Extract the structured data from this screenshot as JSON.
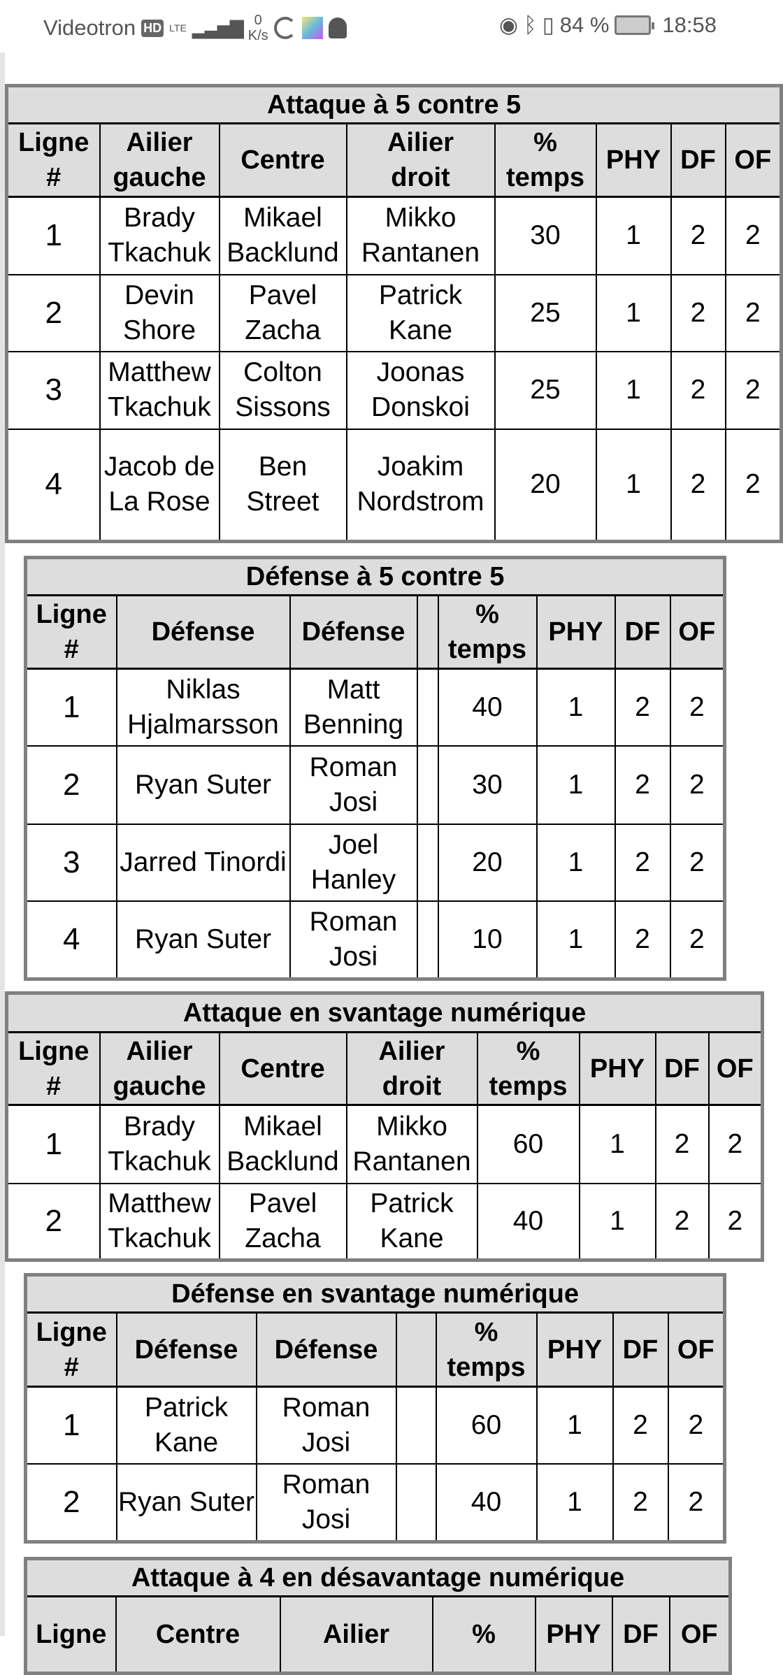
{
  "status_bar": {
    "carrier": "Videotron",
    "hd_badge": "HD",
    "network": "LTE",
    "speed_value": "0",
    "speed_unit": "K/s",
    "battery": "84 %",
    "time": "18:58",
    "icons": [
      "sync-icon",
      "app-icon",
      "snapchat-icon",
      "eye-icon",
      "bluetooth-icon",
      "vibrate-icon",
      "battery-icon"
    ]
  },
  "tables": [
    {
      "title": "Attaque à 5 contre 5",
      "headers": [
        "Ligne\n#",
        "Ailier\ngauche",
        "Centre",
        "Ailier\ndroit",
        "%\ntemps",
        "PHY",
        "DF",
        "OF"
      ],
      "rows": [
        [
          "1",
          "Brady Tkachuk",
          "Mikael Backlund",
          "Mikko Rantanen",
          "30",
          "1",
          "2",
          "2"
        ],
        [
          "2",
          "Devin Shore",
          "Pavel Zacha",
          "Patrick Kane",
          "25",
          "1",
          "2",
          "2"
        ],
        [
          "3",
          "Matthew Tkachuk",
          "Colton Sissons",
          "Joonas Donskoi",
          "25",
          "1",
          "2",
          "2"
        ],
        [
          "4",
          "Jacob de La Rose",
          "Ben Street",
          "Joakim Nordstrom",
          "20",
          "1",
          "2",
          "2"
        ]
      ]
    },
    {
      "title": "Défense à 5 contre 5",
      "headers": [
        "Ligne\n#",
        "Défense",
        "Défense",
        "",
        "%\ntemps",
        "PHY",
        "DF",
        "OF"
      ],
      "rows": [
        [
          "1",
          "Niklas Hjalmarsson",
          "Matt Benning",
          "",
          "40",
          "1",
          "2",
          "2"
        ],
        [
          "2",
          "Ryan Suter",
          "Roman Josi",
          "",
          "30",
          "1",
          "2",
          "2"
        ],
        [
          "3",
          "Jarred Tinordi",
          "Joel Hanley",
          "",
          "20",
          "1",
          "2",
          "2"
        ],
        [
          "4",
          "Ryan Suter",
          "Roman Josi",
          "",
          "10",
          "1",
          "2",
          "2"
        ]
      ]
    },
    {
      "title": "Attaque en svantage numérique",
      "headers": [
        "Ligne\n#",
        "Ailier\ngauche",
        "Centre",
        "Ailier\ndroit",
        "%\ntemps",
        "PHY",
        "DF",
        "OF"
      ],
      "rows": [
        [
          "1",
          "Brady Tkachuk",
          "Mikael Backlund",
          "Mikko Rantanen",
          "60",
          "1",
          "2",
          "2"
        ],
        [
          "2",
          "Matthew Tkachuk",
          "Pavel Zacha",
          "Patrick Kane",
          "40",
          "1",
          "2",
          "2"
        ]
      ]
    },
    {
      "title": "Défense en svantage numérique",
      "headers": [
        "Ligne\n#",
        "Défense",
        "Défense",
        "",
        "%\ntemps",
        "PHY",
        "DF",
        "OF"
      ],
      "rows": [
        [
          "1",
          "Patrick Kane",
          "Roman Josi",
          "",
          "60",
          "1",
          "2",
          "2"
        ],
        [
          "2",
          "Ryan Suter",
          "Roman Josi",
          "",
          "40",
          "1",
          "2",
          "2"
        ]
      ]
    },
    {
      "title": "Attaque à 4 en désavantage numérique",
      "headers": [
        "Ligne",
        "Centre",
        "Ailier",
        "%",
        "PHY",
        "DF",
        "OF"
      ],
      "rows": []
    }
  ]
}
